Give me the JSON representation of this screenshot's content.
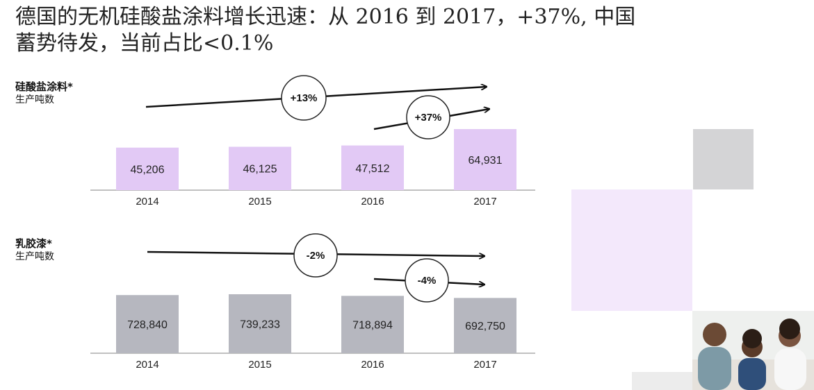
{
  "title": {
    "line1": "德国的无机硅酸盐涂料增长迅速：从 2016 到 2017，+37%, 中国",
    "line2": "蓄势待发，当前占比<0.1%"
  },
  "chart_data": [
    {
      "type": "bar",
      "label": "硅酸盐涂料*",
      "sublabel": "生产吨数",
      "categories": [
        "2014",
        "2015",
        "2016",
        "2017"
      ],
      "values": [
        45206,
        46125,
        47512,
        64931
      ],
      "value_labels": [
        "45,206",
        "46,125",
        "47,512",
        "64,931"
      ],
      "color": "#e2c9f5",
      "growth": [
        {
          "label": "+13%",
          "from": "2014",
          "to": "2017"
        },
        {
          "label": "+37%",
          "from": "2016",
          "to": "2017"
        }
      ]
    },
    {
      "type": "bar",
      "label": "乳胶漆*",
      "sublabel": "生产吨数",
      "categories": [
        "2014",
        "2015",
        "2016",
        "2017"
      ],
      "values": [
        728840,
        739233,
        718894,
        692750
      ],
      "value_labels": [
        "728,840",
        "739,233",
        "718,894",
        "692,750"
      ],
      "color": "#b6b7bf",
      "growth": [
        {
          "label": "-2%",
          "from": "2014",
          "to": "2017"
        },
        {
          "label": "-4%",
          "from": "2016",
          "to": "2017"
        }
      ]
    }
  ],
  "decor_colors": {
    "gray": "#d4d4d6",
    "lavender": "#f3e8fb",
    "light": "#ececec"
  },
  "photo_icon": "family-photo"
}
